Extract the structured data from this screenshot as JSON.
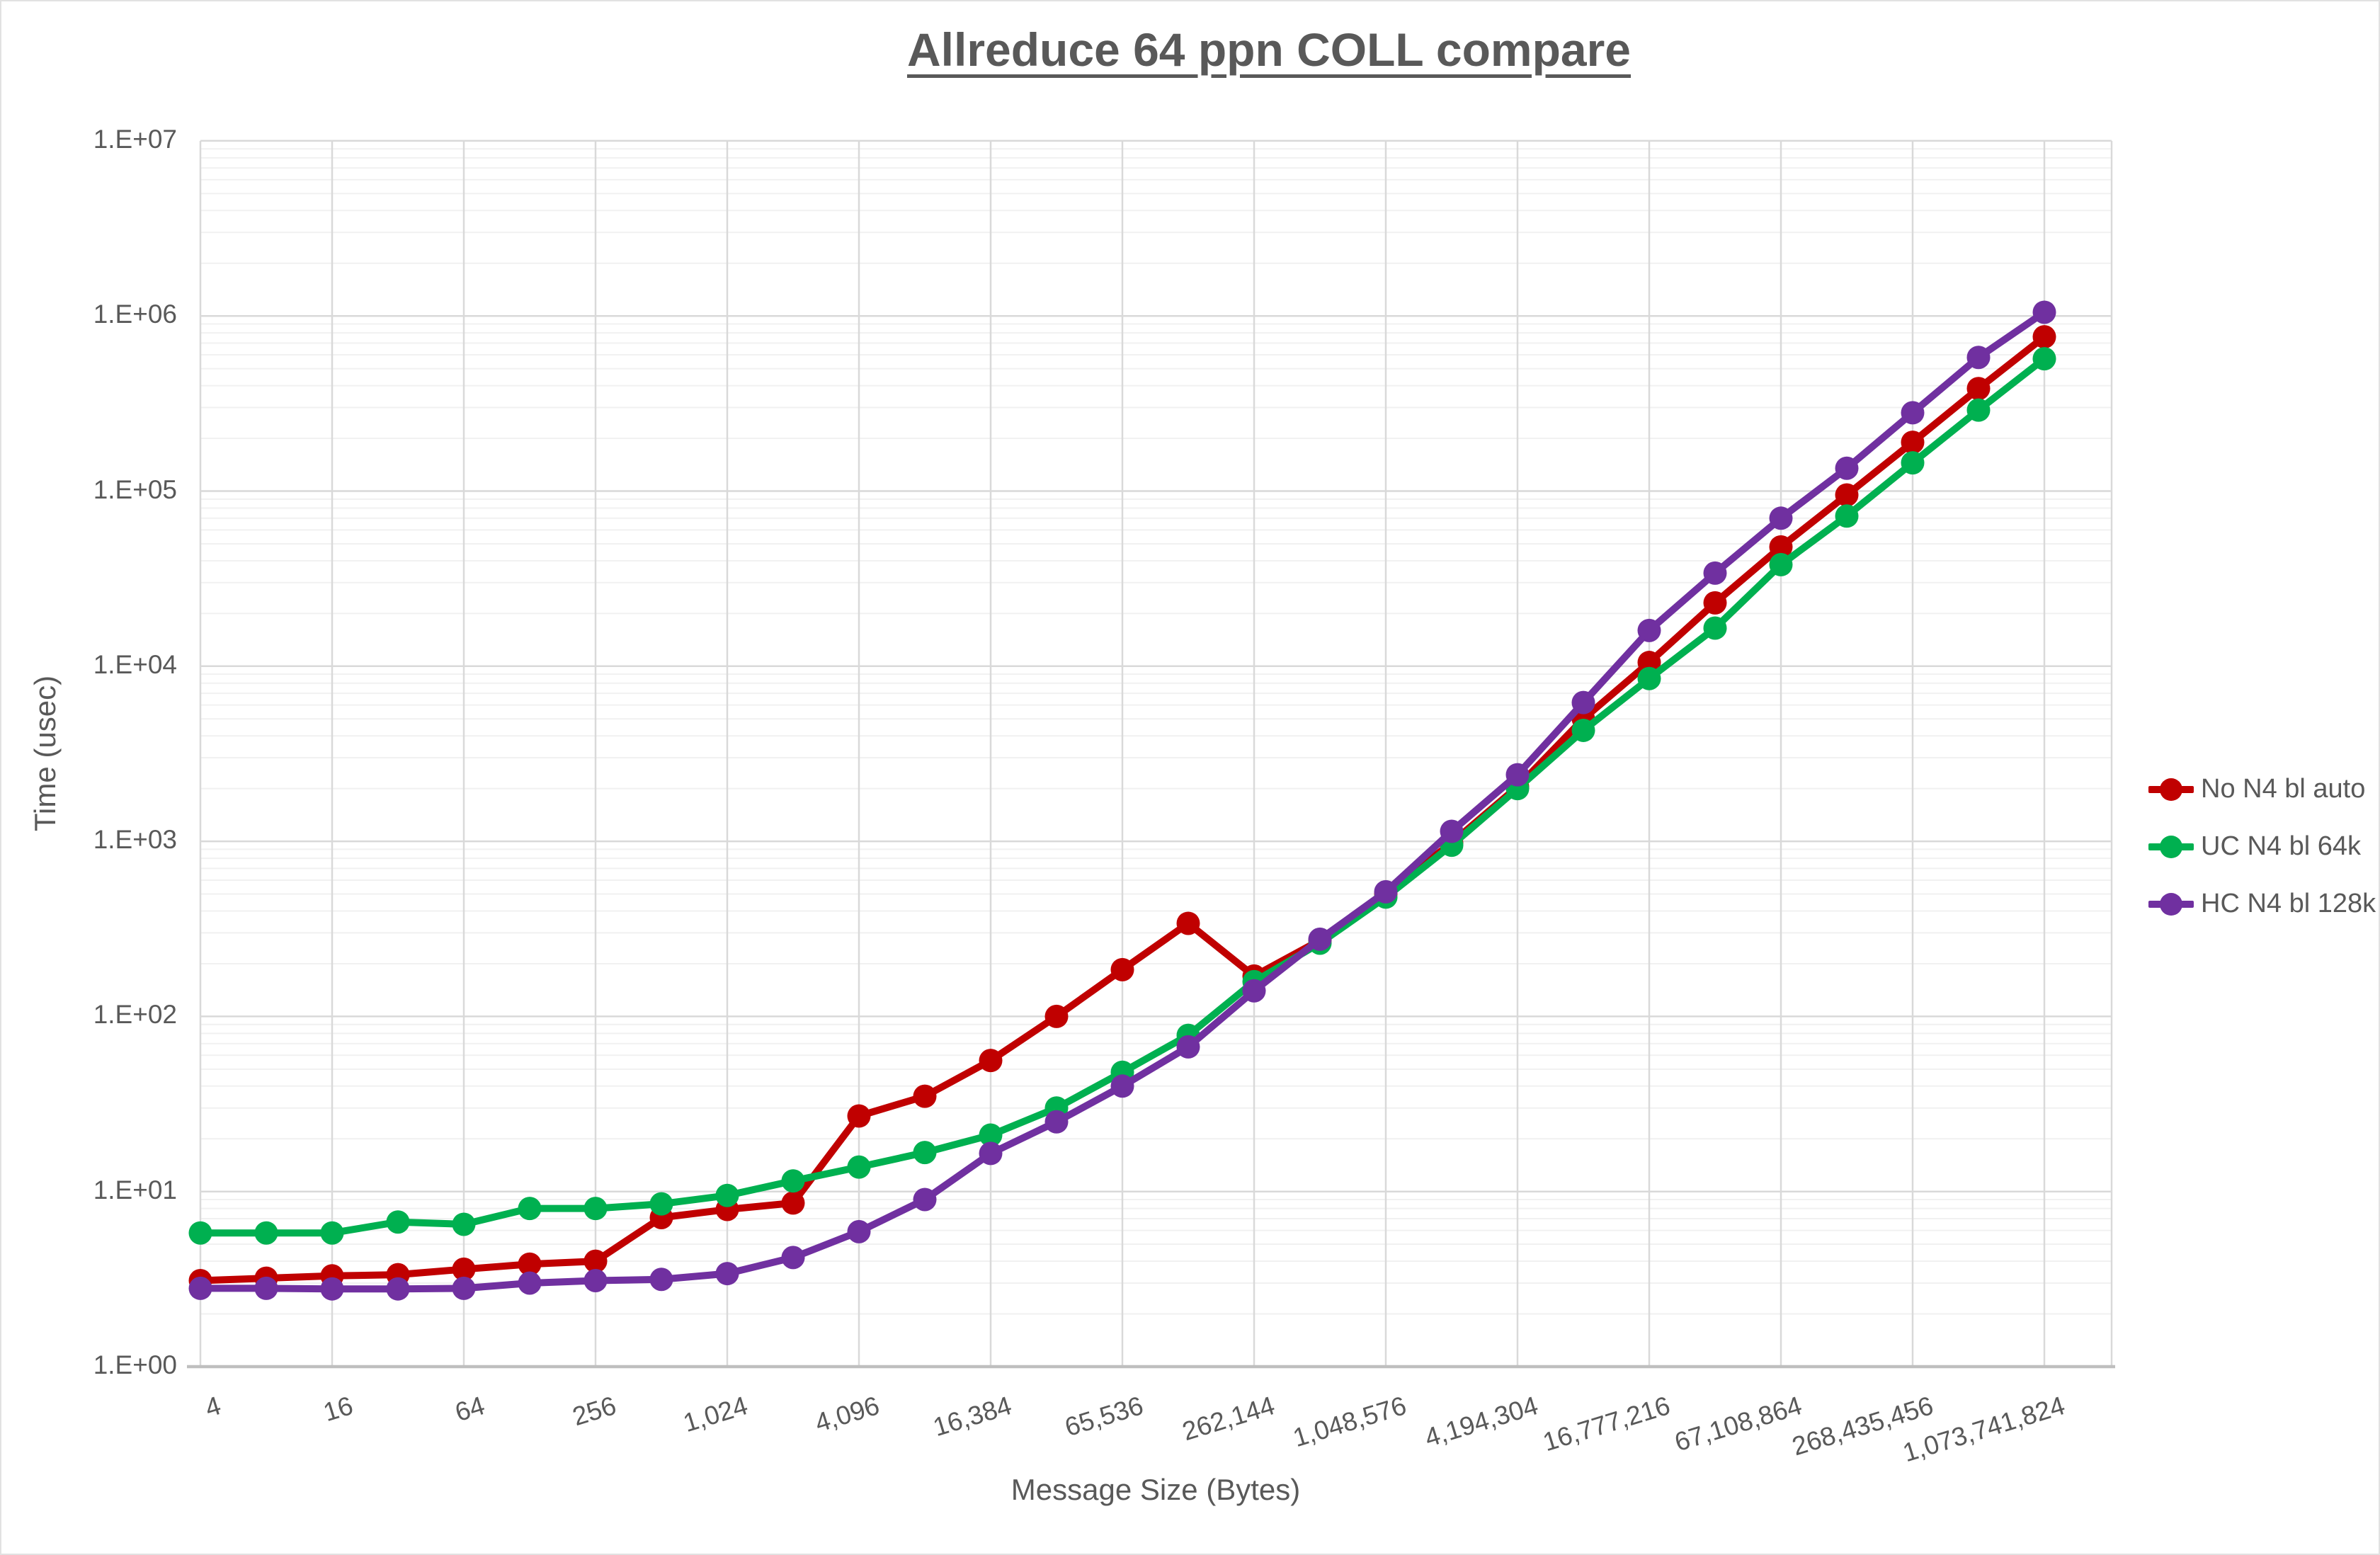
{
  "chart_data": {
    "type": "line",
    "title": "Allreduce 64 ppn COLL compare",
    "xlabel": "Message Size (Bytes)",
    "ylabel": "Time (usec)",
    "x_scale": "log2",
    "y_scale": "log10",
    "ylim": [
      1,
      10000000
    ],
    "grid": true,
    "legend_position": "right",
    "y_tick_labels": [
      "1.E+00",
      "1.E+01",
      "1.E+02",
      "1.E+03",
      "1.E+04",
      "1.E+05",
      "1.E+06",
      "1.E+07"
    ],
    "x": [
      4,
      8,
      16,
      32,
      64,
      128,
      256,
      512,
      1024,
      2048,
      4096,
      8192,
      16384,
      32768,
      65536,
      131072,
      262144,
      524288,
      1048576,
      2097152,
      4194304,
      8388608,
      16777216,
      33554432,
      67108864,
      134217728,
      268435456,
      536870912,
      1073741824
    ],
    "x_tick_labels": [
      "4",
      "16",
      "64",
      "256",
      "1,024",
      "4,096",
      "16,384",
      "65,536",
      "262,144",
      "1,048,576",
      "4,194,304",
      "16,777,216",
      "67,108,864",
      "268,435,456",
      "1,073,741,824"
    ],
    "series": [
      {
        "name": "No N4 bl auto",
        "color": "#C00000",
        "values": [
          3.1,
          3.2,
          3.3,
          3.35,
          3.6,
          3.85,
          4.0,
          7.1,
          7.9,
          8.6,
          27,
          35,
          56,
          100,
          185,
          340,
          170,
          272,
          500,
          980,
          2050,
          5000,
          10500,
          23000,
          48000,
          95000,
          190000,
          385000,
          760000
        ]
      },
      {
        "name": "UC N4 bl 64k",
        "color": "#00B050",
        "values": [
          5.8,
          5.8,
          5.8,
          6.7,
          6.5,
          8.0,
          8.0,
          8.5,
          9.5,
          11.5,
          13.8,
          16.7,
          21,
          30,
          48,
          78,
          158,
          262,
          480,
          950,
          2000,
          4300,
          8500,
          16500,
          38000,
          72000,
          145000,
          290000,
          570000
        ]
      },
      {
        "name": "HC N4 bl 128k",
        "color": "#7030A0",
        "values": [
          2.8,
          2.8,
          2.78,
          2.78,
          2.8,
          3.0,
          3.1,
          3.15,
          3.4,
          4.2,
          5.9,
          9.0,
          16.5,
          25,
          40,
          67,
          140,
          276,
          515,
          1140,
          2400,
          6200,
          16000,
          34000,
          70000,
          135000,
          280000,
          580000,
          1050000
        ]
      }
    ],
    "grid_colors": {
      "major": "#D9D9D9",
      "minor": "#F1F1F1",
      "axis_line": "#BFBFBF"
    }
  }
}
